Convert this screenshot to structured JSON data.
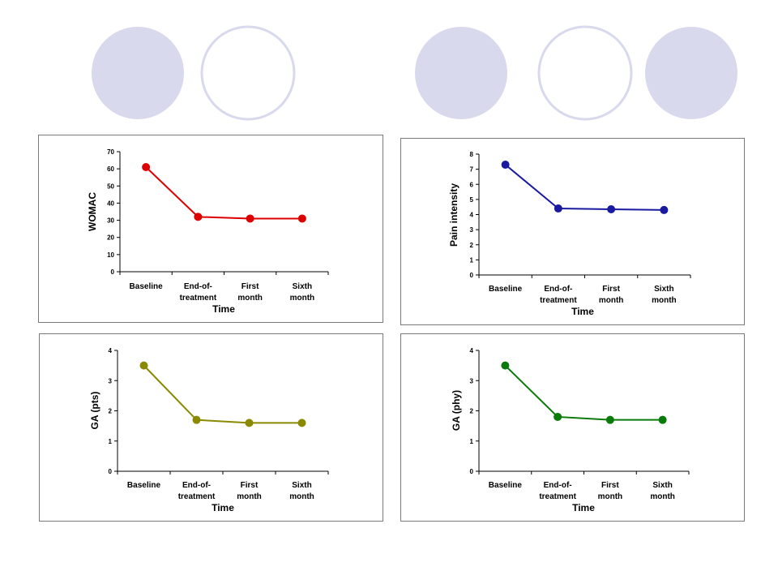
{
  "decor": {
    "circle_fill": "#d9d9ee",
    "circle_stroke": "#d9d9ee",
    "circles": [
      "filled",
      "outline",
      "filled",
      "outline",
      "filled"
    ]
  },
  "chart_data": [
    {
      "type": "line",
      "categories": [
        [
          "Baseline"
        ],
        [
          "End-of-",
          "treatment"
        ],
        [
          "First",
          "month"
        ],
        [
          "Sixth",
          "month"
        ]
      ],
      "values": [
        61,
        32,
        31,
        31
      ],
      "ylabel": "WOMAC",
      "xlabel": "Time",
      "ylim": [
        0,
        70
      ],
      "yticks": [
        0,
        10,
        20,
        30,
        40,
        50,
        60,
        70
      ],
      "color": "#dd0000",
      "grid": false,
      "legend": "none"
    },
    {
      "type": "line",
      "categories": [
        [
          "Baseline"
        ],
        [
          "End-of-",
          "treatment"
        ],
        [
          "First",
          "month"
        ],
        [
          "Sixth",
          "month"
        ]
      ],
      "values": [
        7.3,
        4.4,
        4.35,
        4.3
      ],
      "ylabel": "Pain intensity",
      "xlabel": "Time",
      "ylim": [
        0,
        8
      ],
      "yticks": [
        0,
        1,
        2,
        3,
        4,
        5,
        6,
        7,
        8
      ],
      "color": "#1a1aa0",
      "grid": false,
      "legend": "none"
    },
    {
      "type": "line",
      "categories": [
        [
          "Baseline"
        ],
        [
          "End-of-",
          "treatment"
        ],
        [
          "First",
          "month"
        ],
        [
          "Sixth",
          "month"
        ]
      ],
      "values": [
        3.5,
        1.7,
        1.6,
        1.6
      ],
      "ylabel": "GA (pts)",
      "xlabel": "Time",
      "ylim": [
        0,
        4
      ],
      "yticks": [
        0,
        1,
        2,
        3,
        4
      ],
      "color": "#8a8a00",
      "grid": false,
      "legend": "none"
    },
    {
      "type": "line",
      "categories": [
        [
          "Baseline"
        ],
        [
          "End-of-",
          "treatment"
        ],
        [
          "First",
          "month"
        ],
        [
          "Sixth",
          "month"
        ]
      ],
      "values": [
        3.5,
        1.8,
        1.7,
        1.7
      ],
      "ylabel": "GA (phy)",
      "xlabel": "Time",
      "ylim": [
        0,
        4
      ],
      "yticks": [
        0,
        1,
        2,
        3,
        4
      ],
      "color": "#0a7a0a",
      "grid": false,
      "legend": "none"
    }
  ]
}
